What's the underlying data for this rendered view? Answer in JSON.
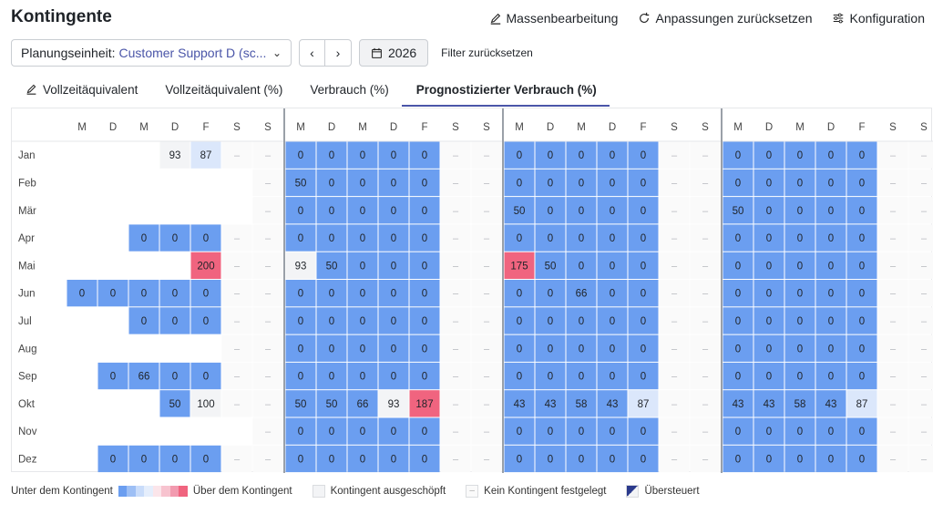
{
  "header": {
    "title": "Kontingente",
    "actions": [
      {
        "label": "Massenbearbeitung",
        "icon": "pencil-icon"
      },
      {
        "label": "Anpassungen zurücksetzen",
        "icon": "reset-icon"
      },
      {
        "label": "Konfiguration",
        "icon": "sliders-icon"
      }
    ]
  },
  "toolbar": {
    "unit_label": "Planungseinheit:",
    "unit_value": "Customer Support D (sc...",
    "year": "2026",
    "reset_filter": "Filter zurücksetzen"
  },
  "tabs": [
    {
      "label": "Vollzeitäquivalent",
      "icon": "pencil-icon",
      "active": false
    },
    {
      "label": "Vollzeitäquivalent (%)",
      "active": false
    },
    {
      "label": "Verbrauch (%)",
      "active": false
    },
    {
      "label": "Prognostizierter Verbrauch (%)",
      "active": true
    }
  ],
  "colors": {
    "under_strong": "#6b9ef0",
    "under_light": "#dbe7fb",
    "under_faint": "#eef3fc",
    "over_strong": "#f0647f",
    "over_light": "#fde4ea",
    "exhausted": "#f3f4f6",
    "accent": "#4a55a8"
  },
  "grid": {
    "day_headers": [
      "M",
      "D",
      "M",
      "D",
      "F",
      "S",
      "S"
    ],
    "months": [
      "Jan",
      "Feb",
      "Mär",
      "Apr",
      "Mai",
      "Jun",
      "Jul",
      "Aug",
      "Sep",
      "Okt",
      "Nov",
      "Dez"
    ],
    "weeks": [
      [
        [
          "",
          "",
          "",
          "93",
          "87",
          "–",
          "–"
        ],
        [
          "",
          "",
          "",
          "",
          "",
          "",
          "–"
        ],
        [
          "",
          "",
          "",
          "",
          "",
          "",
          "–"
        ],
        [
          "",
          "",
          "0",
          "0",
          "0",
          "–",
          "–"
        ],
        [
          "",
          "",
          "",
          "",
          "200",
          "–",
          "–"
        ],
        [
          "0",
          "0",
          "0",
          "0",
          "0",
          "–",
          "–"
        ],
        [
          "",
          "",
          "0",
          "0",
          "0",
          "–",
          "–"
        ],
        [
          "",
          "",
          "",
          "",
          "",
          "–",
          "–"
        ],
        [
          "",
          "0",
          "66",
          "0",
          "0",
          "–",
          "–"
        ],
        [
          "",
          "",
          "",
          "50",
          "100",
          "–",
          "–"
        ],
        [
          "",
          "",
          "",
          "",
          "",
          "",
          "–"
        ],
        [
          "",
          "0",
          "0",
          "0",
          "0",
          "–",
          "–"
        ]
      ],
      [
        [
          "0",
          "0",
          "0",
          "0",
          "0",
          "–",
          "–"
        ],
        [
          "50",
          "0",
          "0",
          "0",
          "0",
          "–",
          "–"
        ],
        [
          "0",
          "0",
          "0",
          "0",
          "0",
          "–",
          "–"
        ],
        [
          "0",
          "0",
          "0",
          "0",
          "0",
          "–",
          "–"
        ],
        [
          "93",
          "50",
          "0",
          "0",
          "0",
          "–",
          "–"
        ],
        [
          "0",
          "0",
          "0",
          "0",
          "0",
          "–",
          "–"
        ],
        [
          "0",
          "0",
          "0",
          "0",
          "0",
          "–",
          "–"
        ],
        [
          "0",
          "0",
          "0",
          "0",
          "0",
          "–",
          "–"
        ],
        [
          "0",
          "0",
          "0",
          "0",
          "0",
          "–",
          "–"
        ],
        [
          "50",
          "50",
          "66",
          "93",
          "187",
          "–",
          "–"
        ],
        [
          "0",
          "0",
          "0",
          "0",
          "0",
          "–",
          "–"
        ],
        [
          "0",
          "0",
          "0",
          "0",
          "0",
          "–",
          "–"
        ]
      ],
      [
        [
          "0",
          "0",
          "0",
          "0",
          "0",
          "–",
          "–"
        ],
        [
          "0",
          "0",
          "0",
          "0",
          "0",
          "–",
          "–"
        ],
        [
          "50",
          "0",
          "0",
          "0",
          "0",
          "–",
          "–"
        ],
        [
          "0",
          "0",
          "0",
          "0",
          "0",
          "–",
          "–"
        ],
        [
          "175",
          "50",
          "0",
          "0",
          "0",
          "–",
          "–"
        ],
        [
          "0",
          "0",
          "66",
          "0",
          "0",
          "–",
          "–"
        ],
        [
          "0",
          "0",
          "0",
          "0",
          "0",
          "–",
          "–"
        ],
        [
          "0",
          "0",
          "0",
          "0",
          "0",
          "–",
          "–"
        ],
        [
          "0",
          "0",
          "0",
          "0",
          "0",
          "–",
          "–"
        ],
        [
          "43",
          "43",
          "58",
          "43",
          "87",
          "–",
          "–"
        ],
        [
          "0",
          "0",
          "0",
          "0",
          "0",
          "–",
          "–"
        ],
        [
          "0",
          "0",
          "0",
          "0",
          "0",
          "–",
          "–"
        ]
      ],
      [
        [
          "0",
          "0",
          "0",
          "0",
          "0",
          "–",
          "–"
        ],
        [
          "0",
          "0",
          "0",
          "0",
          "0",
          "–",
          "–"
        ],
        [
          "50",
          "0",
          "0",
          "0",
          "0",
          "–",
          "–"
        ],
        [
          "0",
          "0",
          "0",
          "0",
          "0",
          "–",
          "–"
        ],
        [
          "0",
          "0",
          "0",
          "0",
          "0",
          "–",
          "–"
        ],
        [
          "0",
          "0",
          "0",
          "0",
          "0",
          "–",
          "–"
        ],
        [
          "0",
          "0",
          "0",
          "0",
          "0",
          "–",
          "–"
        ],
        [
          "0",
          "0",
          "0",
          "0",
          "0",
          "–",
          "–"
        ],
        [
          "0",
          "0",
          "0",
          "0",
          "0",
          "–",
          "–"
        ],
        [
          "43",
          "43",
          "58",
          "43",
          "87",
          "–",
          "–"
        ],
        [
          "0",
          "0",
          "0",
          "0",
          "0",
          "–",
          "–"
        ],
        [
          "0",
          "0",
          "0",
          "0",
          "0",
          "–",
          "–"
        ]
      ]
    ]
  },
  "legend": {
    "under": "Unter dem Kontingent",
    "over": "Über dem Kontingent",
    "exhausted": "Kontingent ausgeschöpft",
    "none": "Kein Kontingent festgelegt",
    "overridden": "Übersteuert",
    "gradient": [
      "#6b9ef0",
      "#9dbff5",
      "#c9dcfa",
      "#e5eefc",
      "#fbe5ea",
      "#f7c3cf",
      "#f29aaf",
      "#f0647f"
    ]
  }
}
